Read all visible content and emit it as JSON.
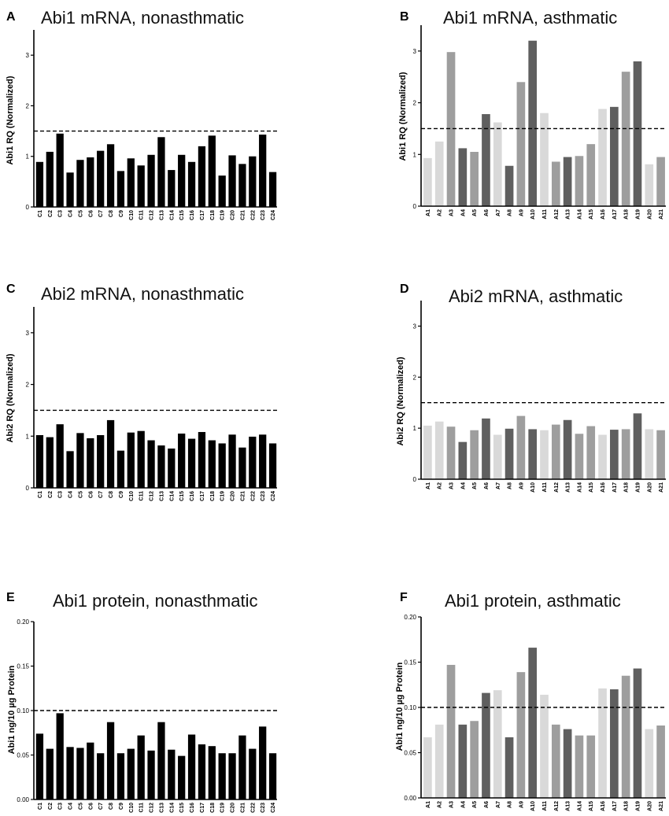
{
  "chart_data": [
    {
      "panel": "A",
      "type": "bar",
      "title": "Abi1 mRNA, nonasthmatic",
      "ylabel": "Abi1 RQ (Normalized)",
      "ylim": [
        0,
        3.5
      ],
      "yticks": [
        0,
        1,
        2,
        3
      ],
      "ytick_labels": [
        "0",
        "1",
        "2",
        "3"
      ],
      "reference_line": 1.5,
      "categories": [
        "C1",
        "C2",
        "C3",
        "C4",
        "C5",
        "C6",
        "C7",
        "C8",
        "C9",
        "C10",
        "C11",
        "C12",
        "C13",
        "C14",
        "C15",
        "C16",
        "C17",
        "C18",
        "C19",
        "C20",
        "C21",
        "C22",
        "C23",
        "C24"
      ],
      "values": [
        0.89,
        1.09,
        1.45,
        0.68,
        0.93,
        0.98,
        1.11,
        1.24,
        0.71,
        0.96,
        0.82,
        1.03,
        1.38,
        0.73,
        1.03,
        0.89,
        1.2,
        1.41,
        0.62,
        1.02,
        0.85,
        1.0,
        1.43,
        0.69
      ],
      "colors": [
        "#000000"
      ]
    },
    {
      "panel": "B",
      "type": "bar",
      "title": "Abi1 mRNA, asthmatic",
      "ylabel": "Abi1 RQ (Normalized)",
      "ylim": [
        0,
        3.5
      ],
      "yticks": [
        0,
        1,
        2,
        3
      ],
      "ytick_labels": [
        "0",
        "1",
        "2",
        "3"
      ],
      "reference_line": 1.5,
      "categories": [
        "A1",
        "A2",
        "A3",
        "A4",
        "A5",
        "A6",
        "A7",
        "A8",
        "A9",
        "A10",
        "A11",
        "A12",
        "A13",
        "A14",
        "A15",
        "A16",
        "A17",
        "A18",
        "A19",
        "A20",
        "A21"
      ],
      "values": [
        0.93,
        1.25,
        2.98,
        1.12,
        1.05,
        1.78,
        1.62,
        0.78,
        2.4,
        3.2,
        1.8,
        0.86,
        0.95,
        0.97,
        1.2,
        1.88,
        1.92,
        2.6,
        2.8,
        0.81,
        0.95
      ],
      "colors": [
        "#d9d9d9",
        "#d9d9d9",
        "#9e9e9e",
        "#5f5f5f",
        "#9e9e9e",
        "#5f5f5f",
        "#d9d9d9",
        "#5f5f5f",
        "#9e9e9e",
        "#5f5f5f",
        "#d9d9d9",
        "#9e9e9e",
        "#5f5f5f",
        "#9e9e9e",
        "#9e9e9e",
        "#d9d9d9",
        "#5f5f5f",
        "#9e9e9e",
        "#5f5f5f",
        "#d9d9d9",
        "#9e9e9e"
      ]
    },
    {
      "panel": "C",
      "type": "bar",
      "title": "Abi2 mRNA, nonasthmatic",
      "ylabel": "Abi2 RQ (Normalized)",
      "ylim": [
        0,
        3.5
      ],
      "yticks": [
        0,
        1,
        2,
        3
      ],
      "ytick_labels": [
        "0",
        "1",
        "2",
        "3"
      ],
      "reference_line": 1.5,
      "categories": [
        "C1",
        "C2",
        "C3",
        "C4",
        "C5",
        "C6",
        "C7",
        "C8",
        "C9",
        "C10",
        "C11",
        "C12",
        "C13",
        "C14",
        "C15",
        "C16",
        "C17",
        "C18",
        "C19",
        "C20",
        "C21",
        "C22",
        "C23",
        "C24"
      ],
      "values": [
        1.02,
        0.98,
        1.23,
        0.71,
        1.06,
        0.96,
        1.02,
        1.31,
        0.72,
        1.07,
        1.1,
        0.92,
        0.82,
        0.76,
        1.05,
        0.95,
        1.08,
        0.92,
        0.86,
        1.03,
        0.78,
        0.99,
        1.03,
        0.86
      ],
      "colors": [
        "#000000"
      ]
    },
    {
      "panel": "D",
      "type": "bar",
      "title": "Abi2 mRNA, asthmatic",
      "ylabel": "Abi2 RQ (Normalized)",
      "ylim": [
        0,
        3.5
      ],
      "yticks": [
        0,
        1,
        2,
        3
      ],
      "ytick_labels": [
        "0",
        "1",
        "2",
        "3"
      ],
      "reference_line": 1.5,
      "categories": [
        "A1",
        "A2",
        "A3",
        "A4",
        "A5",
        "A6",
        "A7",
        "A8",
        "A9",
        "A10",
        "A11",
        "A12",
        "A13",
        "A14",
        "A15",
        "A16",
        "A17",
        "A18",
        "A19",
        "A20",
        "A21"
      ],
      "values": [
        1.05,
        1.13,
        1.03,
        0.73,
        0.96,
        1.19,
        0.87,
        0.99,
        1.24,
        0.98,
        0.96,
        1.07,
        1.16,
        0.89,
        1.04,
        0.87,
        0.97,
        0.98,
        1.29,
        0.98,
        0.96
      ],
      "colors": [
        "#d9d9d9",
        "#d9d9d9",
        "#9e9e9e",
        "#5f5f5f",
        "#9e9e9e",
        "#5f5f5f",
        "#d9d9d9",
        "#5f5f5f",
        "#9e9e9e",
        "#5f5f5f",
        "#d9d9d9",
        "#9e9e9e",
        "#5f5f5f",
        "#9e9e9e",
        "#9e9e9e",
        "#d9d9d9",
        "#5f5f5f",
        "#9e9e9e",
        "#5f5f5f",
        "#d9d9d9",
        "#9e9e9e"
      ]
    },
    {
      "panel": "E",
      "type": "bar",
      "title": "Abi1 protein, nonasthmatic",
      "ylabel": "Abi1 ng/10 µg Protein",
      "ylim": [
        0,
        0.2
      ],
      "yticks": [
        0,
        0.05,
        0.1,
        0.15,
        0.2
      ],
      "ytick_labels": [
        "0.00",
        "0.05",
        "0.10",
        "0.15",
        "0.20"
      ],
      "reference_line": 0.1,
      "categories": [
        "C1",
        "C2",
        "C3",
        "C4",
        "C5",
        "C6",
        "C7",
        "C8",
        "C9",
        "C10",
        "C11",
        "C12",
        "C13",
        "C14",
        "C15",
        "C16",
        "C17",
        "C18",
        "C19",
        "C20",
        "C21",
        "C22",
        "C23",
        "C24"
      ],
      "values": [
        0.074,
        0.057,
        0.097,
        0.059,
        0.058,
        0.064,
        0.052,
        0.087,
        0.052,
        0.057,
        0.072,
        0.055,
        0.087,
        0.056,
        0.049,
        0.073,
        0.062,
        0.06,
        0.052,
        0.052,
        0.072,
        0.057,
        0.082,
        0.052
      ],
      "colors": [
        "#000000"
      ]
    },
    {
      "panel": "F",
      "type": "bar",
      "title": "Abi1 protein, asthmatic",
      "ylabel": "Abi1 ng/10 µg Protein",
      "ylim": [
        0,
        0.2
      ],
      "yticks": [
        0,
        0.05,
        0.1,
        0.15,
        0.2
      ],
      "ytick_labels": [
        "0.00",
        "0.05",
        "0.10",
        "0.15",
        "0.20"
      ],
      "reference_line": 0.1,
      "categories": [
        "A1",
        "A2",
        "A3",
        "A4",
        "A5",
        "A6",
        "A7",
        "A8",
        "A9",
        "A10",
        "A11",
        "A12",
        "A13",
        "A14",
        "A15",
        "A16",
        "A17",
        "A18",
        "A19",
        "A20",
        "A21"
      ],
      "values": [
        0.067,
        0.081,
        0.147,
        0.081,
        0.085,
        0.116,
        0.119,
        0.067,
        0.139,
        0.166,
        0.114,
        0.081,
        0.076,
        0.069,
        0.069,
        0.121,
        0.12,
        0.135,
        0.143,
        0.076,
        0.08
      ],
      "colors": [
        "#d9d9d9",
        "#d9d9d9",
        "#9e9e9e",
        "#5f5f5f",
        "#9e9e9e",
        "#5f5f5f",
        "#d9d9d9",
        "#5f5f5f",
        "#9e9e9e",
        "#5f5f5f",
        "#d9d9d9",
        "#9e9e9e",
        "#5f5f5f",
        "#9e9e9e",
        "#9e9e9e",
        "#d9d9d9",
        "#5f5f5f",
        "#9e9e9e",
        "#5f5f5f",
        "#d9d9d9",
        "#9e9e9e"
      ]
    }
  ]
}
